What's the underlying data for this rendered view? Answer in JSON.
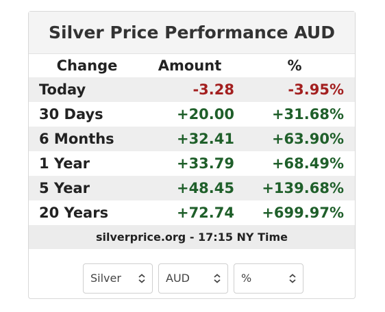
{
  "header": {
    "title": "Silver Price Performance AUD"
  },
  "table": {
    "columns": [
      "Change",
      "Amount",
      "%"
    ],
    "rows": [
      [
        "Today",
        "-3.28",
        "-3.95%"
      ],
      [
        "30 Days",
        "+20.00",
        "+31.68%"
      ],
      [
        "6 Months",
        "+32.41",
        "+63.90%"
      ],
      [
        "1 Year",
        "+33.79",
        "+68.49%"
      ],
      [
        "5 Year",
        "+48.45",
        "+139.68%"
      ],
      [
        "20 Years",
        "+72.74",
        "+699.97%"
      ]
    ],
    "colors": {
      "negative": "#a31f1f",
      "positive": "#1f5f2a"
    }
  },
  "footer": {
    "text": "silverprice.org - 17:15 NY Time"
  },
  "controls": {
    "metal": "Silver",
    "currency": "AUD",
    "mode": "%"
  }
}
